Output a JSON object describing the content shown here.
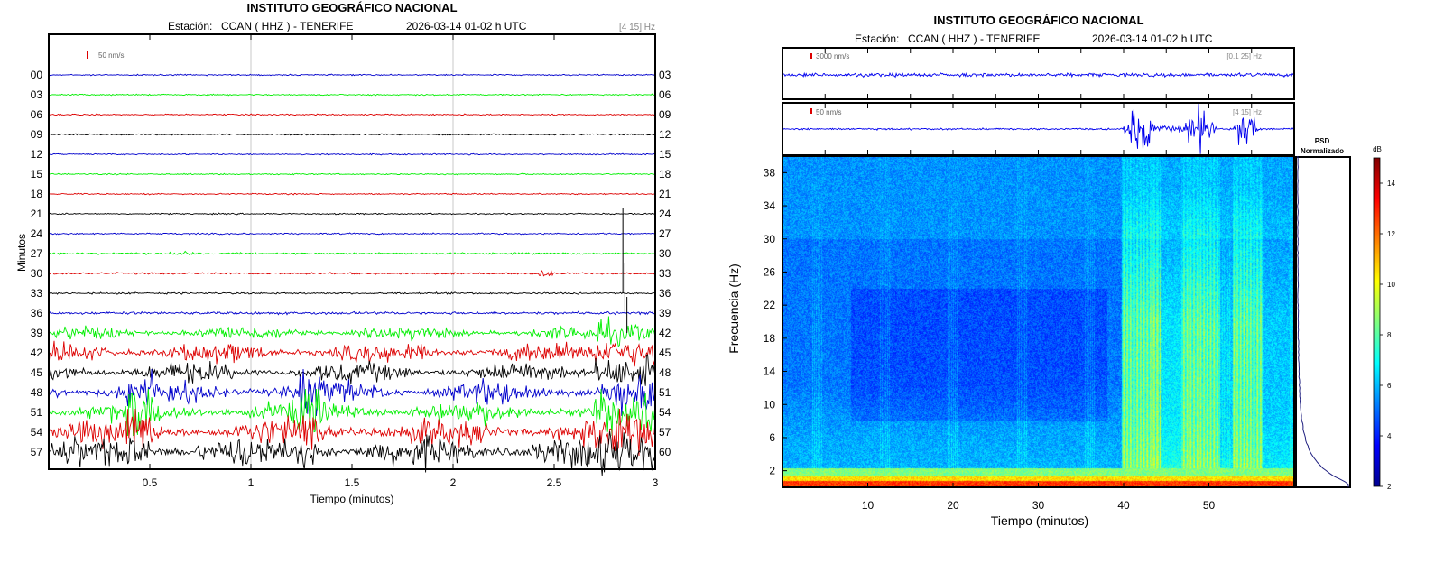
{
  "left": {
    "title": "INSTITUTO GEOGRÁFICO NACIONAL",
    "station_label": "Estación:",
    "station": "CCAN ( HHZ ) - TENERIFE",
    "datetime": "2026-03-14  01-02 h UTC",
    "filter": "[4 15] Hz",
    "scale_label": "50 nm/s",
    "ylabel": "Minutos",
    "xlabel": "Tiempo (minutos)",
    "xticks": [
      "0.5",
      "1",
      "1.5",
      "2",
      "2.5",
      "3"
    ],
    "left_labels": [
      "00",
      "03",
      "06",
      "09",
      "12",
      "15",
      "18",
      "21",
      "24",
      "27",
      "30",
      "33",
      "36",
      "39",
      "42",
      "45",
      "48",
      "51",
      "54",
      "57"
    ],
    "right_labels": [
      "03",
      "06",
      "09",
      "12",
      "15",
      "18",
      "21",
      "24",
      "27",
      "30",
      "33",
      "36",
      "39",
      "42",
      "45",
      "48",
      "51",
      "54",
      "57",
      "60"
    ],
    "trace_colors": [
      "#0000cc",
      "#00ee00",
      "#dd0000",
      "#000000"
    ]
  },
  "right": {
    "title": "INSTITUTO GEOGRÁFICO NACIONAL",
    "station_label": "Estación:",
    "station": "CCAN ( HHZ ) - TENERIFE",
    "datetime": "2026-03-14  01-02 h UTC",
    "trace1_scale": "3000 nm/s",
    "trace1_filter": "[0.1 25] Hz",
    "trace2_scale": "50 nm/s",
    "trace2_filter": "[4 15] Hz",
    "psd_title_1": "PSD",
    "psd_title_2": "Normalizado",
    "colorbar_unit": "dB",
    "colorbar_ticks": [
      "2",
      "4",
      "6",
      "8",
      "10",
      "12",
      "14"
    ],
    "ylabel": "Frecuencia (Hz)",
    "xlabel": "Tiempo (minutos)",
    "yticks": [
      "2",
      "6",
      "10",
      "14",
      "18",
      "22",
      "26",
      "30",
      "34",
      "38"
    ],
    "xticks": [
      "10",
      "20",
      "30",
      "40",
      "50"
    ]
  },
  "chart_data": [
    {
      "type": "line",
      "title": "INSTITUTO GEOGRÁFICO NACIONAL",
      "xlabel": "Tiempo (minutos)",
      "ylabel": "Minutos",
      "xlim": [
        0,
        3
      ],
      "grid": "vertical lines at 1 and 2",
      "series_count": 20,
      "series_colors_cycle": [
        "blue",
        "green",
        "red",
        "black"
      ],
      "noise_amplitude_by_row": [
        0.6,
        0.6,
        0.6,
        0.6,
        0.6,
        0.6,
        0.6,
        0.6,
        0.7,
        0.8,
        0.8,
        0.8,
        1.2,
        4,
        6,
        6,
        7,
        7,
        8,
        9
      ]
    },
    {
      "type": "heatmap",
      "title": "INSTITUTO GEOGRÁFICO NACIONAL",
      "xlabel": "Tiempo (minutos)",
      "ylabel": "Frecuencia (Hz)",
      "xlim": [
        0,
        60
      ],
      "ylim": [
        0,
        40
      ],
      "colorbar": {
        "label": "dB",
        "range": [
          2,
          15
        ]
      },
      "active_windows_minutes": [
        [
          40,
          44
        ],
        [
          47,
          51
        ],
        [
          53,
          56
        ]
      ]
    }
  ]
}
